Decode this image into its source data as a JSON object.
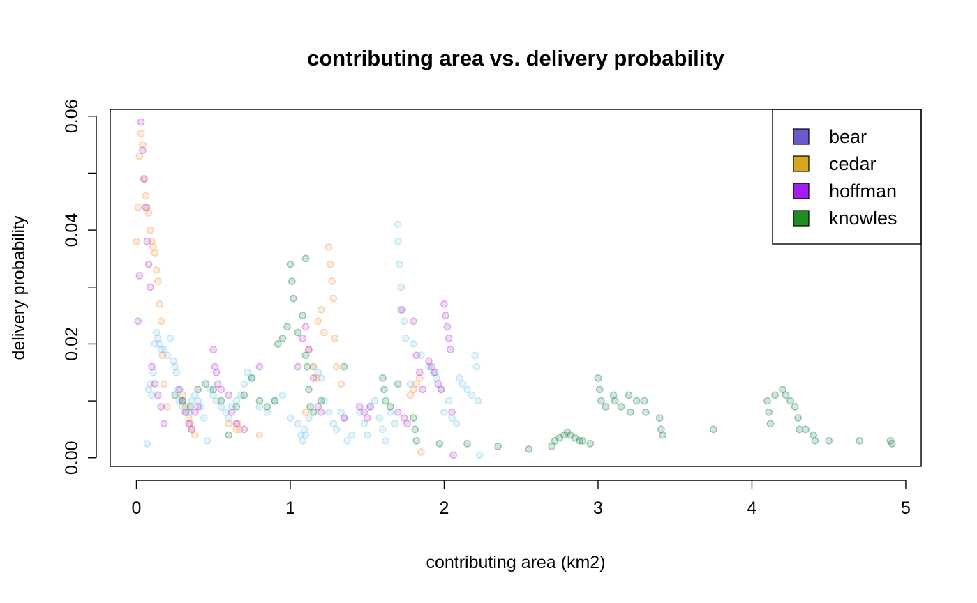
{
  "chart_data": {
    "type": "scatter",
    "title": "contributing area vs. delivery probability",
    "xlabel": "contributing area (km2)",
    "ylabel": "delivery probability",
    "xlim": [
      -0.17,
      5.1
    ],
    "ylim": [
      -0.0015,
      0.0612
    ],
    "xticks": [
      "0",
      "1",
      "2",
      "3",
      "4",
      "5"
    ],
    "yticks": [
      "0.00",
      "0.02",
      "0.04",
      "0.06"
    ],
    "legend": {
      "position": "top-right",
      "entries": [
        "bear",
        "cedar",
        "hoffman",
        "knowles"
      ]
    },
    "marker_color": "#87CEEB",
    "series_colors": {
      "bear": "#6A5ACD",
      "cedar": "#DAA520",
      "hoffman": "#A020F0",
      "knowles": "#228B22"
    },
    "point_colors": {
      "bear": "#87CEEB",
      "cedar": "#F4A460",
      "hoffman": "#BA55D3",
      "knowles": "#2E8B57"
    },
    "series": [
      {
        "name": "bear",
        "x": [
          0.07,
          0.08,
          0.09,
          0.1,
          0.11,
          0.12,
          0.13,
          0.14,
          0.15,
          0.16,
          0.18,
          0.2,
          0.22,
          0.24,
          0.25,
          0.26,
          0.27,
          0.28,
          0.3,
          0.32,
          0.34,
          0.36,
          0.38,
          0.4,
          0.42,
          0.44,
          0.46,
          0.48,
          0.5,
          0.52,
          0.55,
          0.58,
          0.6,
          0.62,
          0.65,
          0.68,
          0.7,
          0.72,
          0.75,
          0.8,
          0.85,
          0.9,
          0.95,
          1.0,
          1.05,
          1.07,
          1.08,
          1.09,
          1.1,
          1.12,
          1.15,
          1.18,
          1.2,
          1.22,
          1.25,
          1.28,
          1.3,
          1.33,
          1.35,
          1.37,
          1.4,
          1.45,
          1.48,
          1.5,
          1.52,
          1.55,
          1.58,
          1.6,
          1.62,
          1.65,
          1.68,
          1.7,
          1.7,
          1.71,
          1.72,
          1.73,
          1.74,
          1.75,
          1.78,
          1.8,
          1.85,
          1.9,
          1.93,
          1.95,
          1.98,
          2.0,
          2.03,
          2.05,
          2.08,
          2.1,
          2.12,
          2.15,
          2.18,
          2.2,
          2.21,
          2.22,
          2.23
        ],
        "y": [
          0.0025,
          0.012,
          0.013,
          0.011,
          0.015,
          0.02,
          0.022,
          0.021,
          0.02,
          0.019,
          0.019,
          0.018,
          0.021,
          0.017,
          0.016,
          0.015,
          0.012,
          0.01,
          0.009,
          0.008,
          0.008,
          0.01,
          0.011,
          0.01,
          0.009,
          0.007,
          0.003,
          0.012,
          0.011,
          0.01,
          0.009,
          0.008,
          0.007,
          0.009,
          0.01,
          0.011,
          0.013,
          0.015,
          0.014,
          0.009,
          0.008,
          0.01,
          0.011,
          0.007,
          0.006,
          0.004,
          0.003,
          0.005,
          0.004,
          0.007,
          0.016,
          0.015,
          0.014,
          0.01,
          0.008,
          0.006,
          0.005,
          0.008,
          0.007,
          0.003,
          0.004,
          0.008,
          0.006,
          0.004,
          0.009,
          0.01,
          0.007,
          0.005,
          0.003,
          0.008,
          0.006,
          0.041,
          0.038,
          0.034,
          0.03,
          0.026,
          0.024,
          0.021,
          0.013,
          0.02,
          0.018,
          0.016,
          0.015,
          0.014,
          0.012,
          0.008,
          0.01,
          0.007,
          0.006,
          0.014,
          0.013,
          0.012,
          0.011,
          0.018,
          0.016,
          0.01,
          0.0005
        ]
      },
      {
        "name": "cedar",
        "x": [
          0.0,
          0.01,
          0.02,
          0.03,
          0.04,
          0.05,
          0.06,
          0.07,
          0.08,
          0.09,
          0.1,
          0.11,
          0.12,
          0.13,
          0.14,
          0.15,
          0.16,
          0.17,
          0.18,
          0.2,
          0.3,
          0.32,
          0.34,
          0.35,
          0.36,
          0.38,
          0.6,
          0.65,
          0.66,
          0.67,
          0.8,
          1.1,
          1.12,
          1.15,
          1.17,
          1.18,
          1.2,
          1.22,
          1.25,
          1.26,
          1.27,
          1.28,
          1.29,
          1.3,
          1.33,
          1.78,
          1.8,
          1.82,
          1.84,
          1.85
        ],
        "y": [
          0.038,
          0.044,
          0.053,
          0.057,
          0.055,
          0.049,
          0.046,
          0.044,
          0.043,
          0.04,
          0.038,
          0.037,
          0.036,
          0.033,
          0.031,
          0.027,
          0.024,
          0.018,
          0.013,
          0.009,
          0.011,
          0.009,
          0.007,
          0.006,
          0.005,
          0.004,
          0.006,
          0.005,
          0.006,
          0.005,
          0.004,
          0.008,
          0.019,
          0.016,
          0.014,
          0.024,
          0.026,
          0.022,
          0.037,
          0.034,
          0.031,
          0.028,
          0.021,
          0.016,
          0.013,
          0.011,
          0.012,
          0.013,
          0.014,
          0.001
        ]
      },
      {
        "name": "hoffman",
        "x": [
          0.01,
          0.02,
          0.03,
          0.04,
          0.05,
          0.06,
          0.07,
          0.08,
          0.09,
          0.1,
          0.12,
          0.14,
          0.16,
          0.18,
          0.28,
          0.3,
          0.32,
          0.34,
          0.36,
          0.38,
          0.4,
          0.5,
          0.51,
          0.52,
          0.53,
          0.55,
          0.6,
          0.62,
          0.65,
          0.7,
          0.8,
          1.05,
          1.08,
          1.1,
          1.12,
          1.15,
          1.18,
          1.2,
          1.35,
          1.45,
          1.48,
          1.5,
          1.52,
          1.7,
          1.72,
          1.74,
          1.76,
          1.8,
          1.82,
          1.84,
          1.86,
          1.9,
          1.92,
          1.94,
          1.96,
          1.98,
          2.0,
          2.01,
          2.02,
          2.03,
          2.04,
          2.05,
          2.06
        ],
        "y": [
          0.024,
          0.032,
          0.059,
          0.054,
          0.049,
          0.044,
          0.038,
          0.034,
          0.03,
          0.016,
          0.013,
          0.011,
          0.009,
          0.006,
          0.012,
          0.01,
          0.008,
          0.006,
          0.005,
          0.008,
          0.009,
          0.019,
          0.016,
          0.015,
          0.013,
          0.012,
          0.011,
          0.008,
          0.006,
          0.005,
          0.016,
          0.016,
          0.021,
          0.023,
          0.019,
          0.014,
          0.009,
          0.008,
          0.007,
          0.009,
          0.008,
          0.007,
          0.009,
          0.008,
          0.026,
          0.007,
          0.006,
          0.024,
          0.018,
          0.015,
          0.012,
          0.017,
          0.016,
          0.015,
          0.013,
          0.012,
          0.027,
          0.025,
          0.023,
          0.021,
          0.019,
          0.008,
          0.0005
        ]
      },
      {
        "name": "knowles",
        "x": [
          0.25,
          0.3,
          0.35,
          0.4,
          0.45,
          0.5,
          0.55,
          0.6,
          0.65,
          0.7,
          0.75,
          0.8,
          0.85,
          0.9,
          0.92,
          0.95,
          0.98,
          1.0,
          1.01,
          1.02,
          1.05,
          1.08,
          1.1,
          1.1,
          1.11,
          1.12,
          1.13,
          1.15,
          1.2,
          1.35,
          1.6,
          1.61,
          1.62,
          1.65,
          1.7,
          1.8,
          1.81,
          1.82,
          1.97,
          2.15,
          2.35,
          2.55,
          2.7,
          2.72,
          2.75,
          2.78,
          2.8,
          2.82,
          2.85,
          2.88,
          2.9,
          2.95,
          3.0,
          3.01,
          3.02,
          3.05,
          3.1,
          3.11,
          3.15,
          3.2,
          3.21,
          3.25,
          3.3,
          3.31,
          3.4,
          3.41,
          3.42,
          3.75,
          4.1,
          4.11,
          4.12,
          4.15,
          4.2,
          4.22,
          4.25,
          4.28,
          4.3,
          4.31,
          4.35,
          4.4,
          4.41,
          4.5,
          4.7,
          4.9,
          4.91
        ],
        "y": [
          0.011,
          0.01,
          0.009,
          0.012,
          0.013,
          0.012,
          0.01,
          0.004,
          0.009,
          0.011,
          0.014,
          0.01,
          0.009,
          0.01,
          0.02,
          0.021,
          0.023,
          0.034,
          0.031,
          0.028,
          0.022,
          0.025,
          0.035,
          0.018,
          0.016,
          0.012,
          0.009,
          0.008,
          0.01,
          0.016,
          0.014,
          0.012,
          0.01,
          0.009,
          0.013,
          0.007,
          0.005,
          0.003,
          0.0025,
          0.0025,
          0.002,
          0.0015,
          0.002,
          0.003,
          0.0035,
          0.004,
          0.0045,
          0.004,
          0.0035,
          0.003,
          0.003,
          0.0025,
          0.014,
          0.012,
          0.01,
          0.009,
          0.011,
          0.01,
          0.009,
          0.011,
          0.008,
          0.01,
          0.01,
          0.008,
          0.007,
          0.005,
          0.004,
          0.005,
          0.01,
          0.008,
          0.006,
          0.011,
          0.012,
          0.011,
          0.01,
          0.009,
          0.007,
          0.005,
          0.005,
          0.004,
          0.003,
          0.003,
          0.003,
          0.003,
          0.0025
        ]
      }
    ]
  }
}
